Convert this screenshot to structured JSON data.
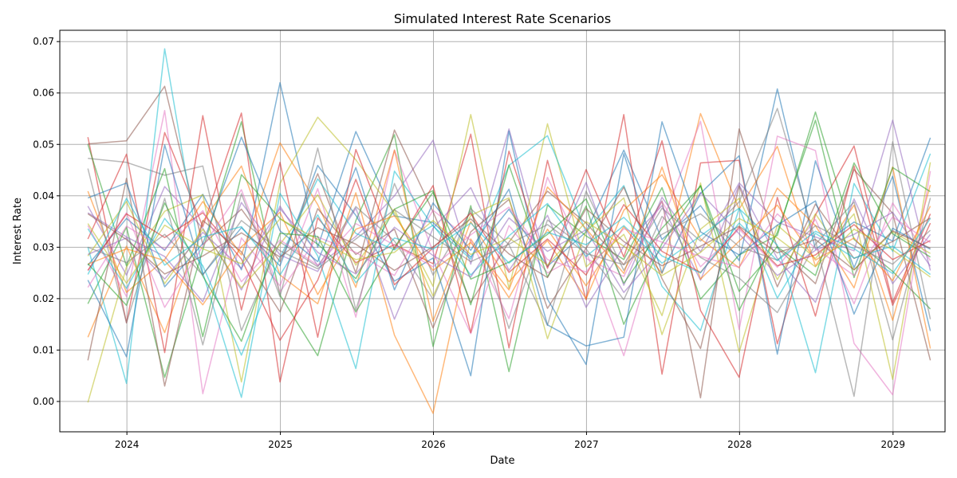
{
  "chart_data": {
    "type": "line",
    "title": "Simulated Interest Rate Scenarios",
    "xlabel": "Date",
    "ylabel": "Interest Rate",
    "x": [
      "2023-09-30",
      "2023-12-31",
      "2024-03-31",
      "2024-06-30",
      "2024-09-30",
      "2024-12-31",
      "2025-03-31",
      "2025-06-30",
      "2025-09-30",
      "2025-12-31",
      "2026-03-31",
      "2026-06-30",
      "2026-09-30",
      "2026-12-31",
      "2027-03-31",
      "2027-06-30",
      "2027-09-30",
      "2027-12-31",
      "2028-03-31",
      "2028-06-30",
      "2028-09-30",
      "2028-12-31",
      "2029-03-31"
    ],
    "xlim": [
      "2023-07-25",
      "2029-05-05"
    ],
    "xticks": [
      {
        "date": "2024-01-01",
        "label": "2024"
      },
      {
        "date": "2025-01-01",
        "label": "2025"
      },
      {
        "date": "2026-01-01",
        "label": "2026"
      },
      {
        "date": "2027-01-01",
        "label": "2027"
      },
      {
        "date": "2028-01-01",
        "label": "2028"
      },
      {
        "date": "2029-01-01",
        "label": "2029"
      }
    ],
    "ylim": [
      -0.0059,
      0.0722
    ],
    "yticks": [
      {
        "value": 0.0,
        "label": "0.00"
      },
      {
        "value": 0.01,
        "label": "0.01"
      },
      {
        "value": 0.02,
        "label": "0.02"
      },
      {
        "value": 0.03,
        "label": "0.03"
      },
      {
        "value": 0.04,
        "label": "0.04"
      },
      {
        "value": 0.05,
        "label": "0.05"
      },
      {
        "value": 0.06,
        "label": "0.06"
      },
      {
        "value": 0.07,
        "label": "0.07"
      }
    ],
    "grid": true,
    "line_opacity": 0.55,
    "series": [
      {
        "color": "#1f77b4",
        "values": [
          0.0265,
          0.0356,
          0.0294,
          0.0403,
          0.0256,
          0.062,
          0.03,
          0.0525,
          0.0361,
          0.0348,
          0.0281,
          0.0374,
          0.0263,
          0.033,
          0.0489,
          0.0315,
          0.0381,
          0.0274,
          0.0608,
          0.0296,
          0.0349,
          0.0312,
          0.0513
        ]
      },
      {
        "color": "#ff7f0e",
        "values": [
          0.0125,
          0.0302,
          0.0134,
          0.035,
          0.0458,
          0.0246,
          0.019,
          0.0406,
          0.0129,
          -0.0023,
          0.0316,
          0.0202,
          0.0335,
          0.0225,
          0.034,
          0.0249,
          0.056,
          0.0374,
          0.0496,
          0.0263,
          0.0382,
          0.0158,
          0.0421
        ]
      },
      {
        "color": "#2ca02c",
        "values": [
          0.019,
          0.0339,
          0.0047,
          0.0295,
          0.0544,
          0.0207,
          0.0089,
          0.0352,
          0.0519,
          0.0107,
          0.0381,
          0.0058,
          0.0382,
          0.0322,
          0.0276,
          0.0416,
          0.0199,
          0.0285,
          0.0323,
          0.0563,
          0.0315,
          0.0253,
          0.018
        ]
      },
      {
        "color": "#d62728",
        "values": [
          0.0514,
          0.0153,
          0.0523,
          0.034,
          0.0561,
          0.0038,
          0.0357,
          0.027,
          0.0305,
          0.0268,
          0.052,
          0.0104,
          0.0469,
          0.0198,
          0.0558,
          0.0053,
          0.0464,
          0.0469,
          0.0112,
          0.0363,
          0.0497,
          0.0193,
          0.0365
        ]
      },
      {
        "color": "#9467bd",
        "values": [
          0.038,
          0.0246,
          0.0418,
          0.0337,
          0.0217,
          0.038,
          0.0264,
          0.0321,
          0.04,
          0.0508,
          0.0267,
          0.053,
          0.0262,
          0.0426,
          0.0226,
          0.0397,
          0.0291,
          0.0425,
          0.0349,
          0.032,
          0.0293,
          0.0547,
          0.0255
        ]
      },
      {
        "color": "#8c564b",
        "values": [
          0.0501,
          0.0507,
          0.0613,
          0.0305,
          0.0374,
          0.0272,
          0.0443,
          0.025,
          0.0528,
          0.0369,
          0.0193,
          0.031,
          0.0409,
          0.0347,
          0.0266,
          0.039,
          0.0007,
          0.053,
          0.0299,
          0.0229,
          0.0451,
          0.0366,
          0.008
        ]
      },
      {
        "color": "#e377c2",
        "values": [
          0.0342,
          0.0204,
          0.0566,
          0.0015,
          0.0318,
          0.0225,
          0.0414,
          0.0164,
          0.0489,
          0.0291,
          0.0132,
          0.0342,
          0.025,
          0.0292,
          0.0089,
          0.0348,
          0.0545,
          0.014,
          0.0516,
          0.0488,
          0.0113,
          0.0013,
          0.0448
        ]
      },
      {
        "color": "#7f7f7f",
        "values": [
          0.0473,
          0.0465,
          0.044,
          0.0458,
          0.0138,
          0.031,
          0.0262,
          0.0379,
          0.0312,
          0.0199,
          0.0375,
          0.0305,
          0.0148,
          0.0409,
          0.0255,
          0.0376,
          0.0312,
          0.0388,
          0.057,
          0.0313,
          0.001,
          0.0505,
          0.016
        ]
      },
      {
        "color": "#bcbd22",
        "values": [
          -0.0002,
          0.0262,
          0.037,
          0.0402,
          0.0038,
          0.0424,
          0.0553,
          0.047,
          0.0367,
          0.0224,
          0.0558,
          0.022,
          0.054,
          0.0262,
          0.0325,
          0.0167,
          0.0425,
          0.0096,
          0.0343,
          0.0278,
          0.0365,
          0.0043,
          0.0465
        ]
      },
      {
        "color": "#17becf",
        "values": [
          0.03,
          0.0035,
          0.0686,
          0.025,
          0.0008,
          0.0405,
          0.0283,
          0.0064,
          0.0448,
          0.0341,
          0.0277,
          0.0459,
          0.0517,
          0.0329,
          0.042,
          0.0224,
          0.0138,
          0.0375,
          0.0304,
          0.0056,
          0.0424,
          0.0292,
          0.0482
        ]
      },
      {
        "color": "#1f77b4",
        "values": [
          0.0236,
          0.0087,
          0.0499,
          0.0247,
          0.0338,
          0.0264,
          0.0459,
          0.0362,
          0.0234,
          0.0279,
          0.005,
          0.0526,
          0.0199,
          0.0072,
          0.0482,
          0.025,
          0.0405,
          0.0478,
          0.0092,
          0.0468,
          0.026,
          0.0438,
          0.0137
        ]
      },
      {
        "color": "#ff7f0e",
        "values": [
          0.0409,
          0.0212,
          0.0276,
          0.0389,
          0.0285,
          0.0503,
          0.0383,
          0.0222,
          0.0489,
          0.0156,
          0.035,
          0.0233,
          0.0313,
          0.02,
          0.0372,
          0.0441,
          0.0316,
          0.026,
          0.0415,
          0.0342,
          0.0221,
          0.0456,
          0.0103
        ]
      },
      {
        "color": "#2ca02c",
        "values": [
          0.05,
          0.0264,
          0.0453,
          0.0126,
          0.0441,
          0.0356,
          0.0306,
          0.0239,
          0.0374,
          0.041,
          0.0188,
          0.046,
          0.0242,
          0.038,
          0.015,
          0.0307,
          0.042,
          0.0177,
          0.0329,
          0.0547,
          0.0241,
          0.0455,
          0.0408
        ]
      },
      {
        "color": "#d62728",
        "values": [
          0.0316,
          0.0481,
          0.0095,
          0.0556,
          0.0178,
          0.0465,
          0.0125,
          0.049,
          0.0296,
          0.042,
          0.0134,
          0.0487,
          0.0259,
          0.0451,
          0.0281,
          0.0507,
          0.0177,
          0.0047,
          0.0397,
          0.0166,
          0.0458,
          0.0187,
          0.0347
        ]
      },
      {
        "color": "#9467bd",
        "values": [
          0.0367,
          0.032,
          0.0282,
          0.0194,
          0.0387,
          0.0285,
          0.0253,
          0.0376,
          0.016,
          0.0337,
          0.0416,
          0.0255,
          0.0362,
          0.0183,
          0.0302,
          0.0381,
          0.0236,
          0.0421,
          0.0278,
          0.0193,
          0.0394,
          0.0229,
          0.0325
        ]
      },
      {
        "color": "#8c564b",
        "values": [
          0.008,
          0.0434,
          0.003,
          0.0352,
          0.0291,
          0.0174,
          0.0375,
          0.0286,
          0.0335,
          0.0143,
          0.033,
          0.0393,
          0.0181,
          0.0298,
          0.0417,
          0.0239,
          0.0103,
          0.0419,
          0.0223,
          0.0384,
          0.0278,
          0.0311,
          0.0357
        ]
      },
      {
        "color": "#e377c2",
        "values": [
          0.0255,
          0.0367,
          0.0183,
          0.0302,
          0.0412,
          0.0213,
          0.032,
          0.029,
          0.0245,
          0.0372,
          0.0313,
          0.0161,
          0.0436,
          0.0278,
          0.0243,
          0.0389,
          0.0262,
          0.0335,
          0.0261,
          0.0354,
          0.019,
          0.0386,
          0.0274
        ]
      },
      {
        "color": "#7f7f7f",
        "values": [
          0.0453,
          0.0153,
          0.0395,
          0.011,
          0.0404,
          0.0204,
          0.0493,
          0.0178,
          0.0424,
          0.0246,
          0.037,
          0.0142,
          0.0353,
          0.0297,
          0.0198,
          0.036,
          0.028,
          0.024,
          0.0173,
          0.0306,
          0.0388,
          0.012,
          0.0396
        ]
      },
      {
        "color": "#bcbd22",
        "values": [
          0.0283,
          0.0389,
          0.0229,
          0.0335,
          0.0221,
          0.0306,
          0.0402,
          0.0265,
          0.0374,
          0.0205,
          0.0362,
          0.0396,
          0.0122,
          0.0331,
          0.0396,
          0.013,
          0.0335,
          0.0395,
          0.0237,
          0.0365,
          0.0256,
          0.033,
          0.0288
        ]
      },
      {
        "color": "#17becf",
        "values": [
          0.0336,
          0.022,
          0.0356,
          0.0264,
          0.009,
          0.028,
          0.0433,
          0.0327,
          0.0295,
          0.0343,
          0.0246,
          0.0322,
          0.0385,
          0.0282,
          0.0342,
          0.0269,
          0.0322,
          0.0376,
          0.0201,
          0.0327,
          0.0279,
          0.0302,
          0.0247
        ]
      },
      {
        "color": "#1f77b4",
        "values": [
          0.0396,
          0.0425,
          0.0223,
          0.0307,
          0.0514,
          0.0332,
          0.0272,
          0.0455,
          0.0217,
          0.0386,
          0.0294,
          0.0413,
          0.0149,
          0.0108,
          0.0125,
          0.0544,
          0.033,
          0.0285,
          0.0343,
          0.039,
          0.017,
          0.0337,
          0.0296
        ]
      },
      {
        "color": "#ff7f0e",
        "values": [
          0.0267,
          0.0297,
          0.0274,
          0.0188,
          0.0301,
          0.0368,
          0.0208,
          0.0335,
          0.0361,
          0.0255,
          0.0309,
          0.0217,
          0.0417,
          0.0336,
          0.0249,
          0.0456,
          0.0238,
          0.0312,
          0.0382,
          0.0275,
          0.0318,
          0.0235,
          0.038
        ]
      },
      {
        "color": "#2ca02c",
        "values": [
          0.0268,
          0.0187,
          0.0386,
          0.0244,
          0.0117,
          0.0327,
          0.0321,
          0.0174,
          0.03,
          0.0407,
          0.0238,
          0.0271,
          0.0325,
          0.0394,
          0.023,
          0.0337,
          0.0419,
          0.0214,
          0.0301,
          0.0245,
          0.0464,
          0.0326,
          0.0281
        ]
      },
      {
        "color": "#d62728",
        "values": [
          0.0255,
          0.0365,
          0.0319,
          0.0367,
          0.0277,
          0.0119,
          0.0236,
          0.0432,
          0.0227,
          0.0299,
          0.0366,
          0.0251,
          0.0316,
          0.0246,
          0.0383,
          0.0292,
          0.0251,
          0.0339,
          0.0264,
          0.0285,
          0.0344,
          0.0276,
          0.0313
        ]
      },
      {
        "color": "#9467bd",
        "values": [
          0.0286,
          0.0318,
          0.0238,
          0.0329,
          0.0259,
          0.0375,
          0.029,
          0.0248,
          0.0339,
          0.0284,
          0.0242,
          0.0357,
          0.0292,
          0.0334,
          0.0212,
          0.0298,
          0.0406,
          0.0326,
          0.0245,
          0.0294,
          0.0325,
          0.0368,
          0.0263
        ]
      },
      {
        "color": "#8c564b",
        "values": [
          0.0365,
          0.0315,
          0.0248,
          0.0283,
          0.0328,
          0.0281,
          0.0338,
          0.0306,
          0.0255,
          0.0301,
          0.0355,
          0.0287,
          0.0241,
          0.0375,
          0.0311,
          0.0264,
          0.0302,
          0.0341,
          0.0289,
          0.0315,
          0.0256,
          0.0332,
          0.0298
        ]
      },
      {
        "color": "#e377c2",
        "values": [
          0.0222,
          0.0341,
          0.0296,
          0.0371,
          0.0233,
          0.0314,
          0.0265,
          0.0346,
          0.0304,
          0.0262,
          0.0324,
          0.0378,
          0.0276,
          0.0252,
          0.0336,
          0.031,
          0.0282,
          0.0261,
          0.0365,
          0.0298,
          0.0245,
          0.0359,
          0.0309
        ]
      },
      {
        "color": "#7f7f7f",
        "values": [
          0.03,
          0.027,
          0.0325,
          0.0246,
          0.0352,
          0.0293,
          0.0258,
          0.0316,
          0.0373,
          0.032,
          0.0272,
          0.0306,
          0.0344,
          0.0288,
          0.0266,
          0.0325,
          0.0365,
          0.0301,
          0.0275,
          0.0342,
          0.0303,
          0.0267,
          0.0333
        ]
      },
      {
        "color": "#bcbd22",
        "values": [
          0.0346,
          0.023,
          0.0343,
          0.0297,
          0.0268,
          0.0355,
          0.0315,
          0.0276,
          0.029,
          0.0352,
          0.0286,
          0.0318,
          0.0265,
          0.035,
          0.0302,
          0.0245,
          0.029,
          0.0356,
          0.0318,
          0.0262,
          0.0335,
          0.0295,
          0.0242
        ]
      },
      {
        "color": "#17becf",
        "values": [
          0.0247,
          0.0395,
          0.0265,
          0.032,
          0.034,
          0.0246,
          0.0363,
          0.0231,
          0.0318,
          0.0296,
          0.0347,
          0.0269,
          0.0329,
          0.0305,
          0.0358,
          0.0283,
          0.025,
          0.0347,
          0.0274,
          0.0331,
          0.0297,
          0.0249,
          0.0356
        ]
      }
    ]
  }
}
